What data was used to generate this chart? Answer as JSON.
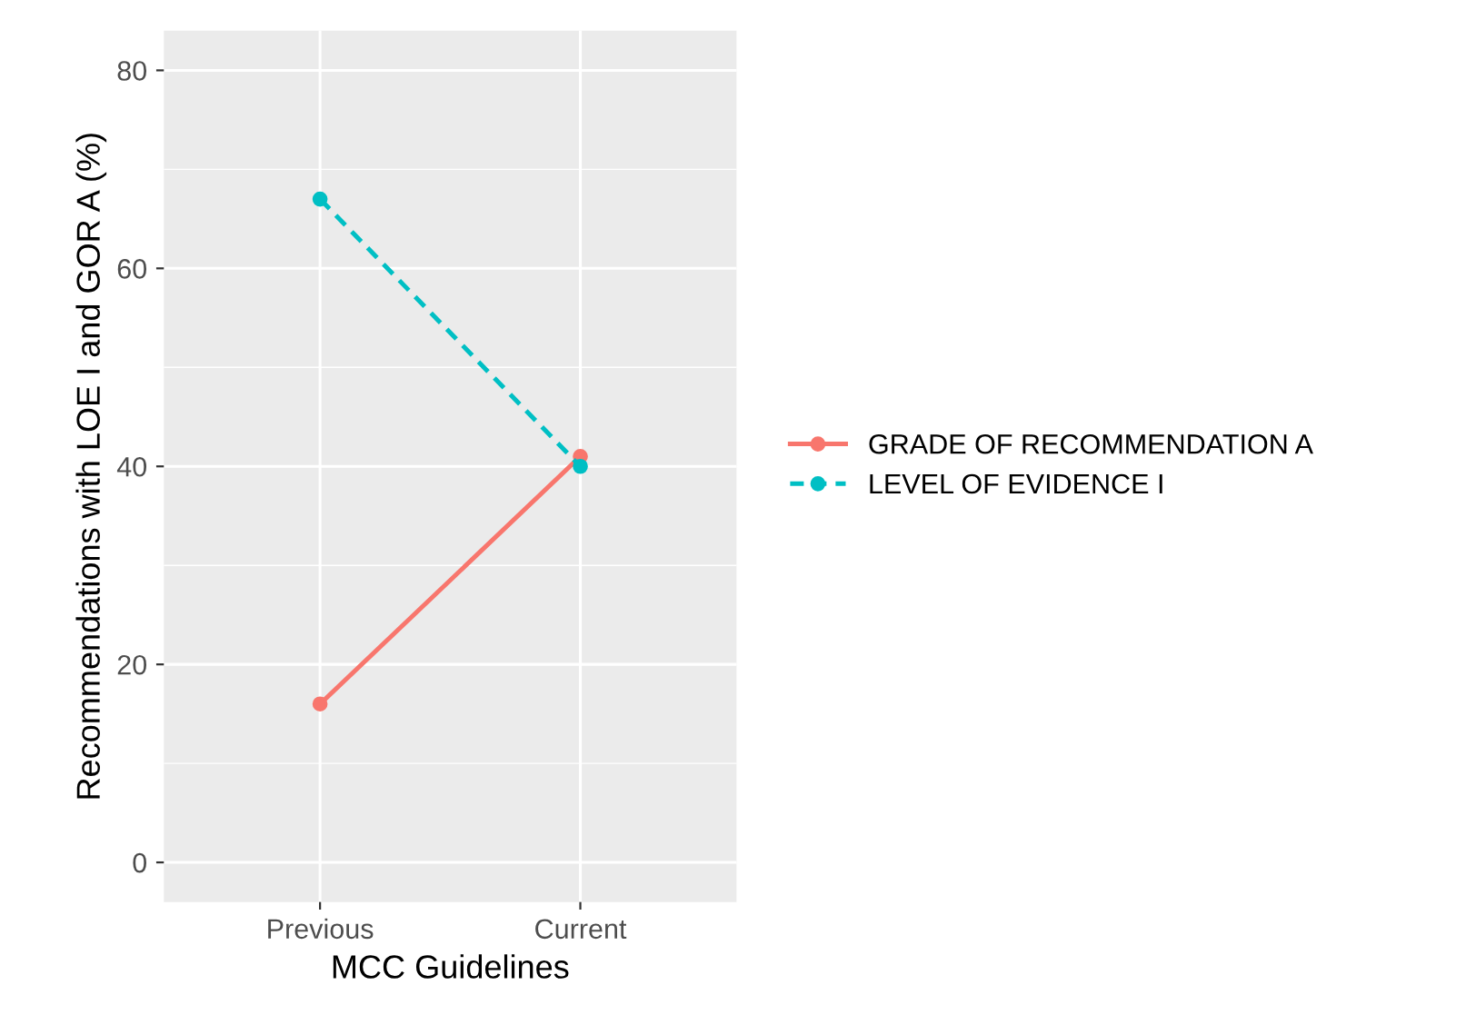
{
  "chart_data": {
    "type": "line",
    "xlabel": "MCC Guidelines",
    "ylabel": "Recommendations with LOE I and GOR A (%)",
    "categories": [
      "Previous",
      "Current"
    ],
    "series": [
      {
        "name": "GRADE OF RECOMMENDATION A",
        "color": "#f8766d",
        "values": [
          16,
          41
        ],
        "line_style": "solid"
      },
      {
        "name": "LEVEL OF EVIDENCE I",
        "color": "#00bfc4",
        "values": [
          67,
          40
        ],
        "line_style": "dashed"
      }
    ],
    "ylim": [
      -4,
      84
    ],
    "yticks": [
      0,
      20,
      40,
      60,
      80
    ],
    "grid": true,
    "legend": "right",
    "marker": "circle"
  }
}
